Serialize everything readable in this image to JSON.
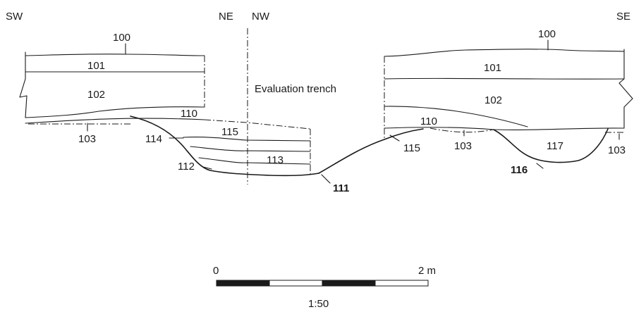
{
  "orientation": {
    "sw": "SW",
    "ne": "NE",
    "nw": "NW",
    "se": "SE"
  },
  "title": "Evaluation trench",
  "layers": {
    "l100a": "100",
    "l100b": "100",
    "l101a": "101",
    "l101b": "101",
    "l102a": "102",
    "l102b": "102",
    "l103a": "103",
    "l103b": "103",
    "l103c": "103",
    "l110a": "110",
    "l110b": "110",
    "l111": "111",
    "l112": "112",
    "l113": "113",
    "l114": "114",
    "l115a": "115",
    "l115b": "115",
    "l116": "116",
    "l117": "117"
  },
  "scale": {
    "start": "0",
    "end": "2 m",
    "ratio": "1:50"
  }
}
